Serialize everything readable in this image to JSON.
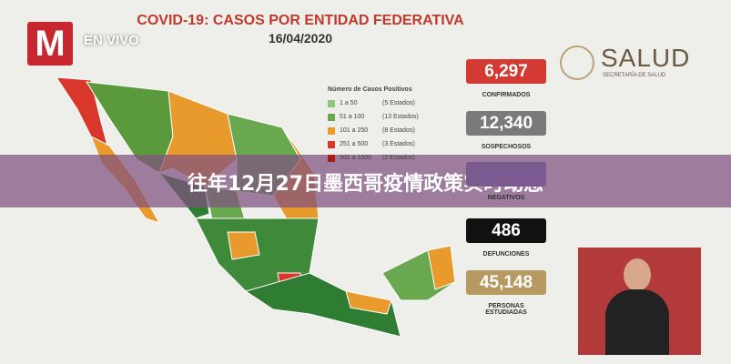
{
  "broadcast": {
    "logo": "M",
    "live": "EN VIVO"
  },
  "header": {
    "title": "COVID-19: CASOS POR ENTIDAD FEDERATIVA",
    "date": "16/04/2020"
  },
  "agency": {
    "name": "SALUD",
    "subtitle": "SECRETARÍA DE SALUD"
  },
  "legend": {
    "title": "Número de Casos Positivos",
    "items": [
      {
        "range": "1 a 50",
        "states": "(5 Estados)"
      },
      {
        "range": "51 a 100",
        "states": "(13 Estados)"
      },
      {
        "range": "101 a 250",
        "states": "(8 Estados)"
      },
      {
        "range": "251 a 500",
        "states": "(3 Estados)"
      },
      {
        "range": "501 a 1000",
        "states": "(2 Estados)"
      }
    ]
  },
  "stats": [
    {
      "value": "6,297",
      "label": "CONFIRMADOS"
    },
    {
      "value": "12,340",
      "label": "SOSPECHOSOS"
    },
    {
      "label": "NEGATIVOS"
    },
    {
      "value": "486",
      "label": "DEFUNCIONES"
    },
    {
      "value": "45,148",
      "label": "PERSONAS ESTUDIADAS"
    }
  ],
  "overlay": {
    "title": "往年12月27日墨西哥疫情政策实时动态"
  }
}
